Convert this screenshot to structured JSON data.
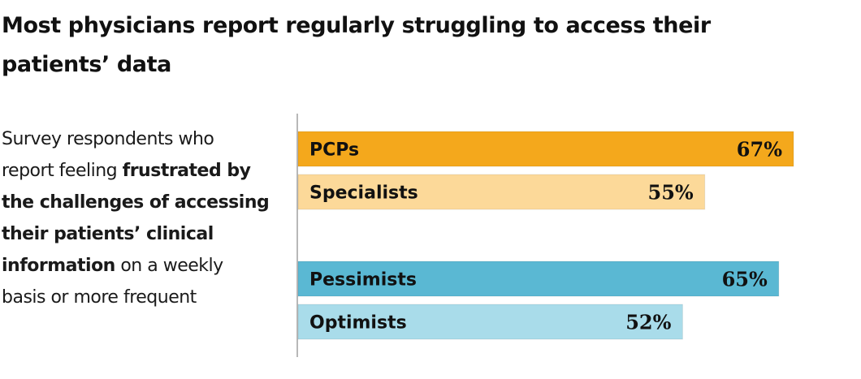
{
  "title": "Most physicians report regularly struggling to access their patients’ data",
  "subtitle": {
    "text_1": "Survey respondents who report feeling ",
    "bold_1": "frustrated by the challenges of accessing their patients’ clinical information",
    "text_2": " on a weekly basis or more frequent"
  },
  "colors": {
    "pcps": "#f4a81c",
    "specialists": "#fcd999",
    "pessimists": "#5ab8d3",
    "optimists": "#a9dcea",
    "axis": "#b8b8b8"
  },
  "chart_data": {
    "type": "bar",
    "orientation": "horizontal",
    "xlim": [
      0,
      67
    ],
    "grid": false,
    "bars": [
      {
        "label": "PCPs",
        "value": 67,
        "value_label": "67%",
        "group": 1,
        "color": "#f4a81c"
      },
      {
        "label": "Specialists",
        "value": 55,
        "value_label": "55%",
        "group": 1,
        "color": "#fcd999"
      },
      {
        "label": "Pessimists",
        "value": 65,
        "value_label": "65%",
        "group": 2,
        "color": "#5ab8d3"
      },
      {
        "label": "Optimists",
        "value": 52,
        "value_label": "52%",
        "group": 2,
        "color": "#a9dcea"
      }
    ]
  }
}
